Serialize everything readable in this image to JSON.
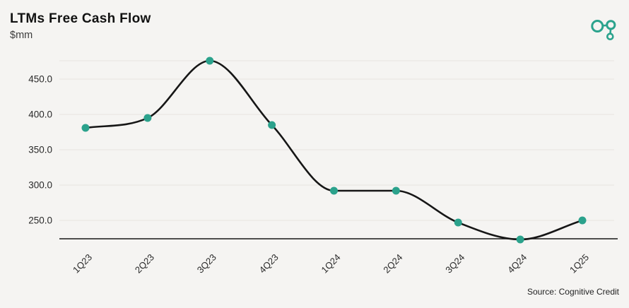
{
  "header": {
    "title": "LTMs Free Cash Flow",
    "subtitle": "$mm"
  },
  "logo": {
    "name": "cognitive-credit-logo",
    "color": "#2BA38D"
  },
  "footer": {
    "source": "Source: Cognitive Credit"
  },
  "colors": {
    "background": "#F5F4F2",
    "grid": "#E9E8E4",
    "line": "#161616",
    "marker": "#2BA28C",
    "axis_line": "#161616",
    "tick_text": "#2A2A2A"
  },
  "chart_data": {
    "type": "line",
    "title": "LTMs Free Cash Flow",
    "ylabel": "$mm",
    "categories": [
      "1Q23",
      "2Q23",
      "3Q23",
      "4Q23",
      "1Q24",
      "2Q24",
      "3Q24",
      "4Q24",
      "1Q25"
    ],
    "values": [
      381,
      395,
      476,
      385,
      292,
      292,
      247,
      223,
      250
    ],
    "yticks": [
      450.0,
      400.0,
      350.0,
      300.0,
      250.0
    ],
    "ylim": [
      223,
      477
    ],
    "grid": true,
    "legend": false,
    "marker": "circle",
    "line_smoothing": "monotone",
    "x_label_rotation": -45
  }
}
